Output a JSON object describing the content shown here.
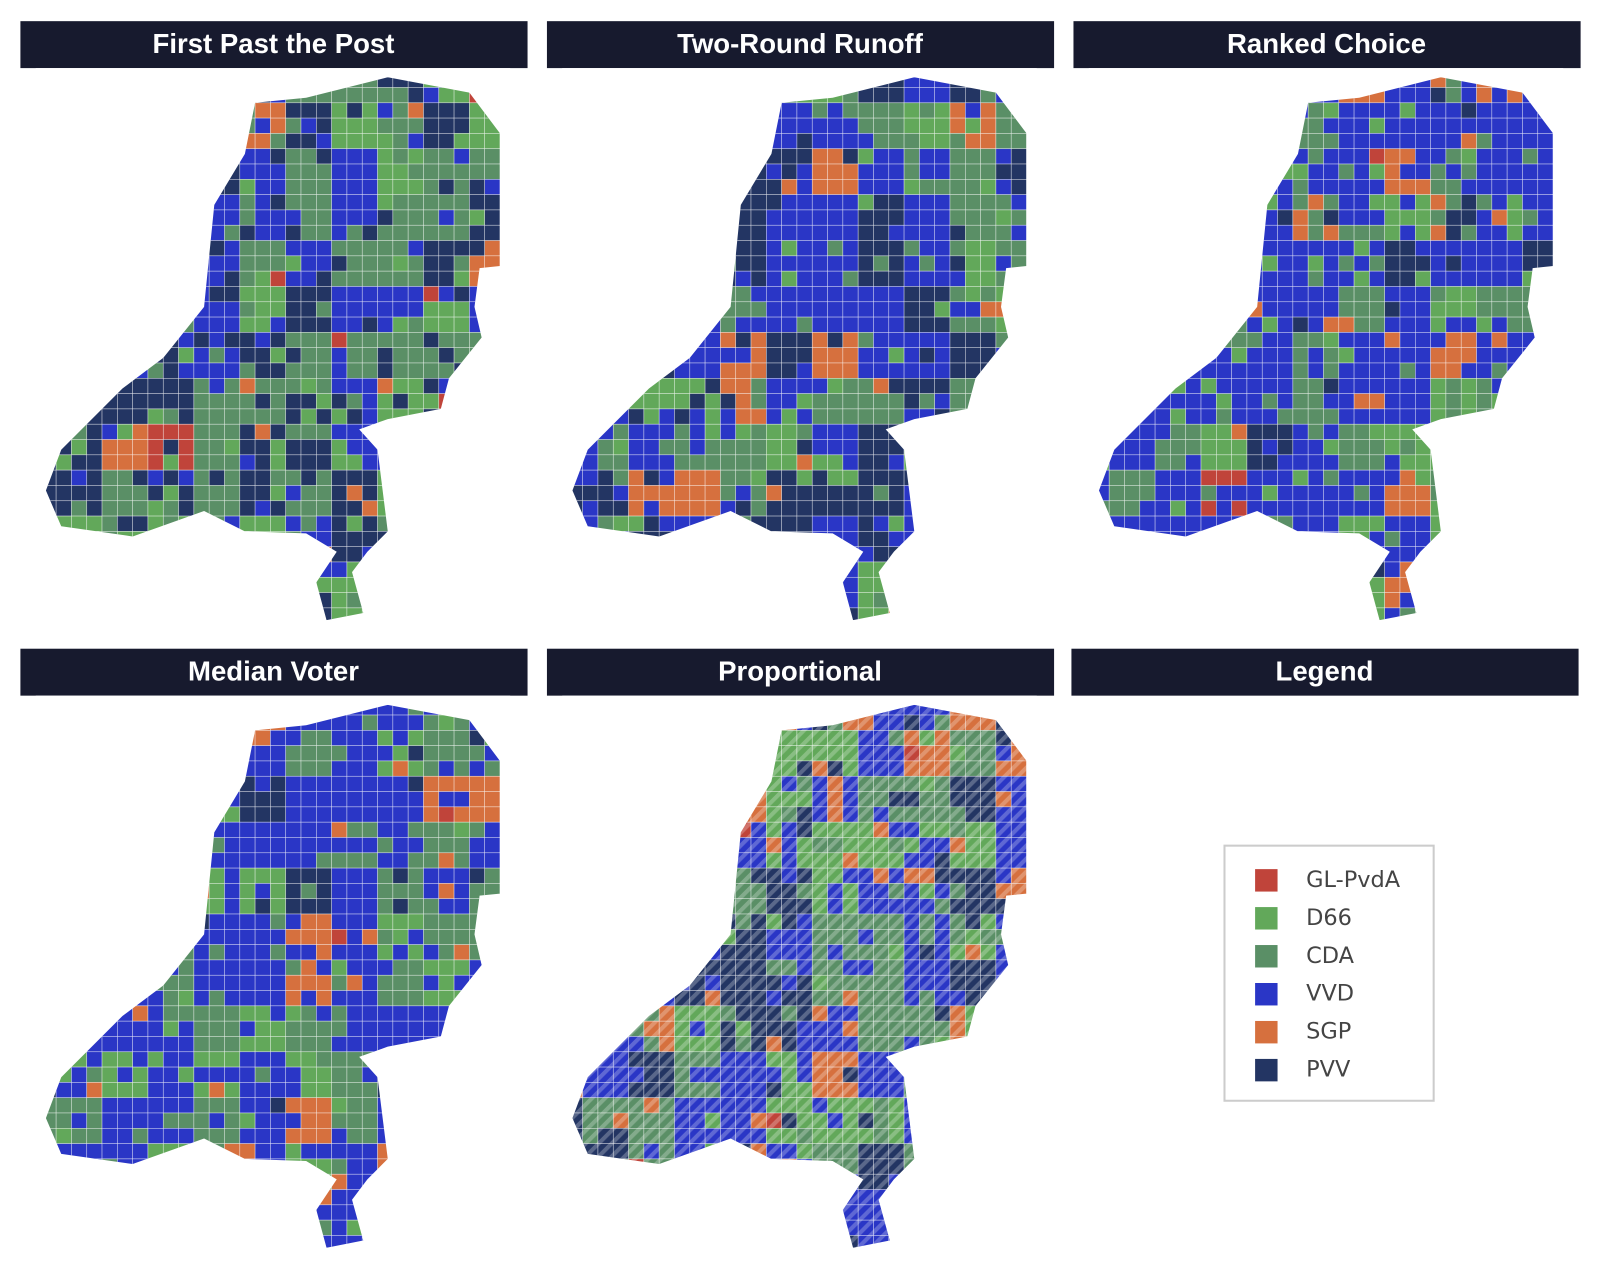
{
  "panels": [
    {
      "title": "First Past the Post"
    },
    {
      "title": "Two-Round Runoff"
    },
    {
      "title": "Ranked Choice"
    },
    {
      "title": "Median Voter"
    },
    {
      "title": "Proportional"
    }
  ],
  "legend": {
    "title": "Legend",
    "items": [
      {
        "name": "GL-PvdA",
        "color": "#c0443a"
      },
      {
        "name": "D66",
        "color": "#62a85a"
      },
      {
        "name": "CDA",
        "color": "#5a8f66"
      },
      {
        "name": "VVD",
        "color": "#2a36c6"
      },
      {
        "name": "SGP",
        "color": "#d6703e"
      },
      {
        "name": "PVV",
        "color": "#233563"
      }
    ]
  }
}
